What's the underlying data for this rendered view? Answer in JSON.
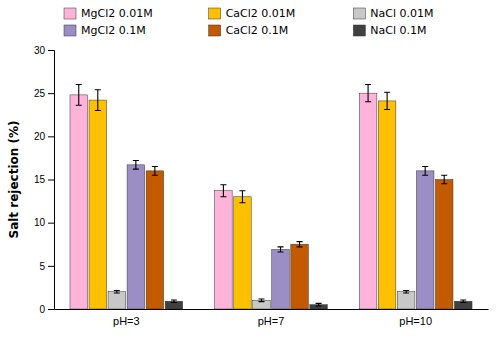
{
  "chart_data": {
    "type": "bar",
    "categories": [
      "pH=3",
      "pH=7",
      "pH=10"
    ],
    "series": [
      {
        "name": "MgCl2 0.01M",
        "color": "#FFB3D9",
        "values": [
          24.8,
          13.7,
          25.0
        ],
        "errors": [
          1.2,
          0.7,
          1.0
        ]
      },
      {
        "name": "CaCl2 0.01M",
        "color": "#FFC000",
        "values": [
          24.2,
          13.0,
          24.1
        ],
        "errors": [
          1.2,
          0.7,
          1.0
        ]
      },
      {
        "name": "NaCl 0.01M",
        "color": "#C8C8C8",
        "values": [
          2.0,
          1.0,
          2.0
        ],
        "errors": [
          0.15,
          0.15,
          0.15
        ]
      },
      {
        "name": "MgCl2 0.1M",
        "color": "#9B8EC4",
        "values": [
          16.7,
          6.9,
          16.0
        ],
        "errors": [
          0.5,
          0.3,
          0.5
        ]
      },
      {
        "name": "CaCl2 0.1M",
        "color": "#C45A00",
        "values": [
          16.0,
          7.5,
          15.0
        ],
        "errors": [
          0.5,
          0.3,
          0.5
        ]
      },
      {
        "name": "NaCl 0.1M",
        "color": "#404040",
        "values": [
          0.9,
          0.5,
          0.9
        ],
        "errors": [
          0.15,
          0.15,
          0.15
        ]
      }
    ],
    "ylabel": "Salt rejection (%)",
    "ylim": [
      0,
      30
    ],
    "yticks": [
      0,
      5,
      10,
      15,
      20,
      25,
      30
    ],
    "grid": false,
    "legend": "top"
  }
}
